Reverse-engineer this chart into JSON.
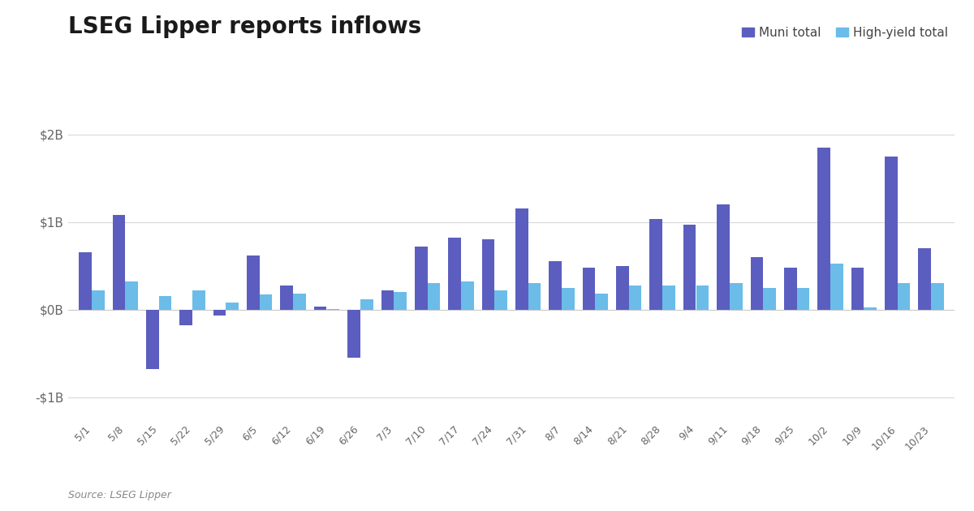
{
  "title": "LSEG Lipper reports inflows",
  "source": "Source: LSEG Lipper",
  "categories": [
    "5/1",
    "5/8",
    "5/15",
    "5/22",
    "5/29",
    "6/5",
    "6/12",
    "6/19",
    "6/26",
    "7/3",
    "7/10",
    "7/17",
    "7/24",
    "7/31",
    "8/7",
    "8/14",
    "8/21",
    "8/28",
    "9/4",
    "9/11",
    "9/18",
    "9/25",
    "10/2",
    "10/9",
    "10/16",
    "10/23"
  ],
  "muni_total": [
    0.65,
    1.08,
    -0.68,
    -0.18,
    -0.07,
    0.62,
    0.27,
    0.03,
    -0.55,
    0.22,
    0.72,
    0.82,
    0.8,
    1.15,
    0.55,
    0.48,
    0.5,
    1.03,
    0.97,
    1.2,
    0.6,
    0.48,
    1.85,
    0.48,
    1.75,
    0.7
  ],
  "hy_total": [
    0.22,
    0.32,
    0.15,
    0.22,
    0.08,
    0.17,
    0.18,
    0.01,
    0.12,
    0.2,
    0.3,
    0.32,
    0.22,
    0.3,
    0.25,
    0.18,
    0.27,
    0.27,
    0.27,
    0.3,
    0.25,
    0.25,
    0.52,
    0.02,
    0.3,
    0.3
  ],
  "muni_color": "#5B5EBF",
  "hy_color": "#6BBCE8",
  "ylim": [
    -1.25,
    2.25
  ],
  "yticks": [
    -1.0,
    0.0,
    1.0,
    2.0
  ],
  "ytick_labels": [
    "-$1B",
    "$0B",
    "$1B",
    "$2B"
  ],
  "background_color": "#ffffff",
  "grid_color": "#d8d8d8",
  "title_fontsize": 20,
  "source_fontsize": 9,
  "bar_width": 0.38,
  "legend_fontsize": 11
}
